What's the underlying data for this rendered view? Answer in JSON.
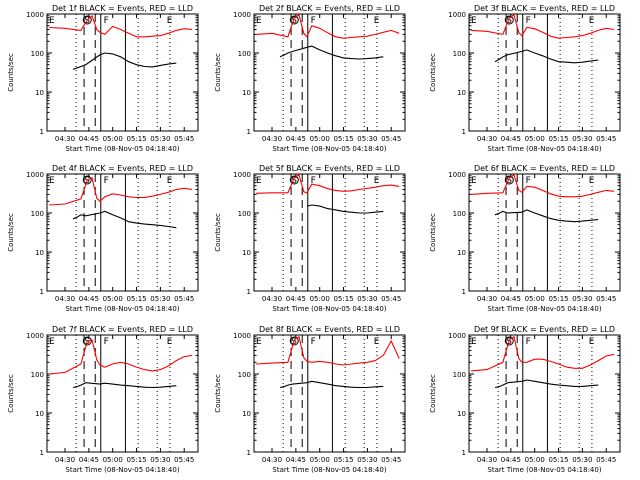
{
  "xlabel": "Start Time (08-Nov-05 04:18:40)",
  "ylabel": "Counts/sec",
  "x_tick_labels": [
    "04:30",
    "04:45",
    "05:00",
    "05:15",
    "05:30",
    "05:45"
  ],
  "y_tick_labels": [
    "1",
    "10",
    "100",
    "1000"
  ],
  "markers": {
    "E": "E",
    "S": "S",
    "F": "F"
  },
  "colors": {
    "events": "#000000",
    "lld": "#ff0000",
    "axis": "#000000"
  },
  "chart_data": [
    {
      "type": "line",
      "title": "Det 1f BLACK = Events, RED = LLD",
      "xlabel": "Start Time (08-Nov-05 04:18:40)",
      "ylabel": "Counts/sec",
      "y_scale": "log",
      "ylim": [
        1,
        1000
      ],
      "x_ticks": [
        "04:30",
        "04:45",
        "05:00",
        "05:15",
        "05:30",
        "05:45"
      ],
      "series": [
        {
          "name": "LLD",
          "color": "#ff0000",
          "x": [
            "04:20",
            "04:30",
            "04:40",
            "04:44",
            "04:47",
            "04:50",
            "04:52",
            "04:55",
            "05:00",
            "05:05",
            "05:10",
            "05:15",
            "05:20",
            "05:25",
            "05:30",
            "05:35",
            "05:40",
            "05:45",
            "05:50"
          ],
          "y": [
            450,
            430,
            380,
            700,
            900,
            400,
            340,
            300,
            480,
            400,
            320,
            260,
            260,
            270,
            280,
            320,
            380,
            420,
            400
          ]
        },
        {
          "name": "Events",
          "color": "#000000",
          "x": [
            "04:35",
            "04:38",
            "04:40",
            "04:43",
            "04:52",
            "04:55",
            "05:00",
            "05:05",
            "05:10",
            "05:15",
            "05:20",
            "05:25",
            "05:30",
            "05:35",
            "05:40"
          ],
          "y": [
            38,
            42,
            45,
            50,
            90,
            100,
            95,
            80,
            60,
            50,
            45,
            44,
            48,
            52,
            55
          ]
        }
      ]
    },
    {
      "type": "line",
      "title": "Det 2f BLACK = Events, RED = LLD",
      "xlabel": "Start Time (08-Nov-05 04:18:40)",
      "ylabel": "Counts/sec",
      "y_scale": "log",
      "ylim": [
        1,
        1000
      ],
      "x_ticks": [
        "04:30",
        "04:45",
        "05:00",
        "05:15",
        "05:30",
        "05:45"
      ],
      "series": [
        {
          "name": "LLD",
          "color": "#ff0000",
          "x": [
            "04:20",
            "04:30",
            "04:40",
            "04:44",
            "04:47",
            "04:50",
            "04:52",
            "04:55",
            "05:00",
            "05:05",
            "05:10",
            "05:15",
            "05:20",
            "05:25",
            "05:30",
            "05:35",
            "05:40",
            "05:45",
            "05:50"
          ],
          "y": [
            300,
            320,
            260,
            800,
            950,
            320,
            260,
            500,
            430,
            330,
            260,
            240,
            250,
            260,
            270,
            300,
            340,
            380,
            320
          ]
        },
        {
          "name": "Events",
          "color": "#000000",
          "x": [
            "04:35",
            "04:38",
            "04:40",
            "04:43",
            "04:52",
            "04:55",
            "05:00",
            "05:05",
            "05:10",
            "05:15",
            "05:20",
            "05:25",
            "05:30",
            "05:35",
            "05:40"
          ],
          "y": [
            80,
            90,
            100,
            110,
            140,
            150,
            120,
            100,
            85,
            75,
            72,
            70,
            72,
            75,
            80
          ]
        }
      ]
    },
    {
      "type": "line",
      "title": "Det 3f BLACK = Events, RED = LLD",
      "xlabel": "Start Time (08-Nov-05 04:18:40)",
      "ylabel": "Counts/sec",
      "y_scale": "log",
      "ylim": [
        1,
        1000
      ],
      "x_ticks": [
        "04:30",
        "04:45",
        "05:00",
        "05:15",
        "05:30",
        "05:45"
      ],
      "series": [
        {
          "name": "LLD",
          "color": "#ff0000",
          "x": [
            "04:20",
            "04:30",
            "04:40",
            "04:44",
            "04:47",
            "04:50",
            "04:52",
            "04:55",
            "05:00",
            "05:05",
            "05:10",
            "05:15",
            "05:20",
            "05:25",
            "05:30",
            "05:35",
            "05:40",
            "05:45",
            "05:50"
          ],
          "y": [
            380,
            360,
            300,
            800,
            950,
            330,
            280,
            450,
            420,
            340,
            270,
            240,
            250,
            260,
            280,
            320,
            380,
            430,
            400
          ]
        },
        {
          "name": "Events",
          "color": "#000000",
          "x": [
            "04:35",
            "04:38",
            "04:40",
            "04:43",
            "04:52",
            "04:55",
            "05:00",
            "05:05",
            "05:10",
            "05:15",
            "05:20",
            "05:25",
            "05:30",
            "05:35",
            "05:40"
          ],
          "y": [
            60,
            70,
            80,
            90,
            110,
            120,
            100,
            85,
            70,
            60,
            58,
            56,
            58,
            62,
            66
          ]
        }
      ]
    },
    {
      "type": "line",
      "title": "Det 4f BLACK = Events, RED = LLD",
      "xlabel": "Start Time (08-Nov-05 04:18:40)",
      "ylabel": "Counts/sec",
      "y_scale": "log",
      "ylim": [
        1,
        1000
      ],
      "x_ticks": [
        "04:30",
        "04:45",
        "05:00",
        "05:15",
        "05:30",
        "05:45"
      ],
      "series": [
        {
          "name": "LLD",
          "color": "#ff0000",
          "x": [
            "04:20",
            "04:30",
            "04:40",
            "04:44",
            "04:47",
            "04:50",
            "04:52",
            "04:55",
            "05:00",
            "05:05",
            "05:10",
            "05:15",
            "05:20",
            "05:25",
            "05:30",
            "05:35",
            "05:40",
            "05:45",
            "05:50"
          ],
          "y": [
            160,
            170,
            230,
            700,
            800,
            240,
            200,
            260,
            310,
            290,
            260,
            250,
            250,
            270,
            300,
            340,
            400,
            430,
            400
          ]
        },
        {
          "name": "Events",
          "color": "#000000",
          "x": [
            "04:35",
            "04:38",
            "04:40",
            "04:43",
            "04:52",
            "04:55",
            "05:00",
            "05:05",
            "05:10",
            "05:15",
            "05:20",
            "05:25",
            "05:30",
            "05:35",
            "05:40"
          ],
          "y": [
            70,
            80,
            90,
            85,
            100,
            110,
            90,
            75,
            60,
            55,
            52,
            50,
            48,
            45,
            42
          ]
        }
      ]
    },
    {
      "type": "line",
      "title": "Det 5f BLACK = Events, RED = LLD",
      "xlabel": "Start Time (08-Nov-05 04:18:40)",
      "ylabel": "Counts/sec",
      "y_scale": "log",
      "ylim": [
        1,
        1000
      ],
      "x_ticks": [
        "04:30",
        "04:45",
        "05:00",
        "05:15",
        "05:30",
        "05:45"
      ],
      "series": [
        {
          "name": "LLD",
          "color": "#ff0000",
          "x": [
            "04:20",
            "04:30",
            "04:40",
            "04:44",
            "04:47",
            "04:50",
            "04:52",
            "04:55",
            "05:00",
            "05:05",
            "05:10",
            "05:15",
            "05:20",
            "05:25",
            "05:30",
            "05:35",
            "05:40",
            "05:45",
            "05:50"
          ],
          "y": [
            320,
            330,
            330,
            800,
            950,
            350,
            330,
            550,
            500,
            420,
            380,
            360,
            370,
            400,
            430,
            460,
            500,
            520,
            480
          ]
        },
        {
          "name": "Events",
          "color": "#000000",
          "x": [
            "04:52",
            "04:55",
            "05:00",
            "05:05",
            "05:10",
            "05:15",
            "05:20",
            "05:25",
            "05:30",
            "05:35",
            "05:40"
          ],
          "y": [
            150,
            160,
            150,
            130,
            120,
            110,
            105,
            100,
            100,
            105,
            110
          ]
        }
      ]
    },
    {
      "type": "line",
      "title": "Det 6f BLACK = Events, RED = LLD",
      "xlabel": "Start Time (08-Nov-05 04:18:40)",
      "ylabel": "Counts/sec",
      "y_scale": "log",
      "ylim": [
        1,
        1000
      ],
      "x_ticks": [
        "04:30",
        "04:45",
        "05:00",
        "05:15",
        "05:30",
        "05:45"
      ],
      "series": [
        {
          "name": "LLD",
          "color": "#ff0000",
          "x": [
            "04:20",
            "04:30",
            "04:40",
            "04:44",
            "04:47",
            "04:50",
            "04:52",
            "04:55",
            "05:00",
            "05:05",
            "05:10",
            "05:15",
            "05:20",
            "05:25",
            "05:30",
            "05:35",
            "05:40",
            "05:45",
            "05:50"
          ],
          "y": [
            300,
            320,
            330,
            800,
            950,
            380,
            340,
            480,
            460,
            380,
            310,
            270,
            260,
            260,
            270,
            300,
            340,
            380,
            360
          ]
        },
        {
          "name": "Events",
          "color": "#000000",
          "x": [
            "04:35",
            "04:38",
            "04:40",
            "04:43",
            "04:52",
            "04:55",
            "05:00",
            "05:05",
            "05:10",
            "05:15",
            "05:20",
            "05:25",
            "05:30",
            "05:35",
            "05:40"
          ],
          "y": [
            90,
            100,
            110,
            100,
            105,
            120,
            100,
            85,
            72,
            65,
            62,
            60,
            62,
            65,
            68
          ]
        }
      ]
    },
    {
      "type": "line",
      "title": "Det 7f BLACK = Events, RED = LLD",
      "xlabel": "Start Time (08-Nov-05 04:18:40)",
      "ylabel": "Counts/sec",
      "y_scale": "log",
      "ylim": [
        1,
        1000
      ],
      "x_ticks": [
        "04:30",
        "04:45",
        "05:00",
        "05:15",
        "05:30",
        "05:45"
      ],
      "series": [
        {
          "name": "LLD",
          "color": "#ff0000",
          "x": [
            "04:20",
            "04:30",
            "04:40",
            "04:44",
            "04:47",
            "04:50",
            "04:52",
            "04:55",
            "05:00",
            "05:05",
            "05:10",
            "05:15",
            "05:20",
            "05:25",
            "05:30",
            "05:35",
            "05:40",
            "05:45",
            "05:50"
          ],
          "y": [
            100,
            110,
            180,
            700,
            750,
            230,
            170,
            150,
            180,
            200,
            180,
            150,
            130,
            120,
            130,
            160,
            220,
            280,
            300
          ]
        },
        {
          "name": "Events",
          "color": "#000000",
          "x": [
            "04:35",
            "04:38",
            "04:40",
            "04:43",
            "04:52",
            "04:55",
            "05:00",
            "05:05",
            "05:10",
            "05:15",
            "05:20",
            "05:25",
            "05:30",
            "05:35",
            "05:40"
          ],
          "y": [
            45,
            48,
            52,
            60,
            55,
            58,
            55,
            52,
            50,
            48,
            46,
            45,
            46,
            48,
            50
          ]
        }
      ]
    },
    {
      "type": "line",
      "title": "Det 8f BLACK = Events, RED = LLD",
      "xlabel": "Start Time (08-Nov-05 04:18:40)",
      "ylabel": "Counts/sec",
      "y_scale": "log",
      "ylim": [
        1,
        1000
      ],
      "x_ticks": [
        "04:30",
        "04:45",
        "05:00",
        "05:15",
        "05:30",
        "05:45"
      ],
      "series": [
        {
          "name": "LLD",
          "color": "#ff0000",
          "x": [
            "04:20",
            "04:30",
            "04:40",
            "04:44",
            "04:47",
            "04:50",
            "04:52",
            "04:55",
            "05:00",
            "05:05",
            "05:10",
            "05:15",
            "05:20",
            "05:25",
            "05:30",
            "05:35",
            "05:40",
            "05:45",
            "05:50"
          ],
          "y": [
            180,
            190,
            200,
            750,
            900,
            260,
            210,
            200,
            210,
            200,
            180,
            170,
            180,
            190,
            200,
            220,
            300,
            700,
            250
          ]
        },
        {
          "name": "Events",
          "color": "#000000",
          "x": [
            "04:35",
            "04:38",
            "04:40",
            "04:43",
            "04:52",
            "04:55",
            "05:00",
            "05:05",
            "05:10",
            "05:15",
            "05:20",
            "05:25",
            "05:30",
            "05:35",
            "05:40"
          ],
          "y": [
            45,
            48,
            52,
            55,
            60,
            65,
            60,
            55,
            50,
            48,
            46,
            45,
            45,
            47,
            48
          ]
        }
      ]
    },
    {
      "type": "line",
      "title": "Det 9f BLACK = Events, RED = LLD",
      "xlabel": "Start Time (08-Nov-05 04:18:40)",
      "ylabel": "Counts/sec",
      "y_scale": "log",
      "ylim": [
        1,
        1000
      ],
      "x_ticks": [
        "04:30",
        "04:45",
        "05:00",
        "05:15",
        "05:30",
        "05:45"
      ],
      "series": [
        {
          "name": "LLD",
          "color": "#ff0000",
          "x": [
            "04:20",
            "04:30",
            "04:40",
            "04:44",
            "04:47",
            "04:50",
            "04:52",
            "04:55",
            "05:00",
            "05:05",
            "05:10",
            "05:15",
            "05:20",
            "05:25",
            "05:30",
            "05:35",
            "05:40",
            "05:45",
            "05:50"
          ],
          "y": [
            120,
            130,
            200,
            750,
            900,
            250,
            200,
            200,
            240,
            240,
            210,
            180,
            150,
            140,
            140,
            170,
            220,
            290,
            320
          ]
        },
        {
          "name": "Events",
          "color": "#000000",
          "x": [
            "04:35",
            "04:38",
            "04:40",
            "04:43",
            "04:52",
            "04:55",
            "05:00",
            "05:05",
            "05:10",
            "05:15",
            "05:20",
            "05:25",
            "05:30",
            "05:35",
            "05:40"
          ],
          "y": [
            45,
            48,
            52,
            60,
            65,
            70,
            65,
            60,
            55,
            52,
            50,
            48,
            48,
            50,
            52
          ]
        }
      ]
    }
  ]
}
